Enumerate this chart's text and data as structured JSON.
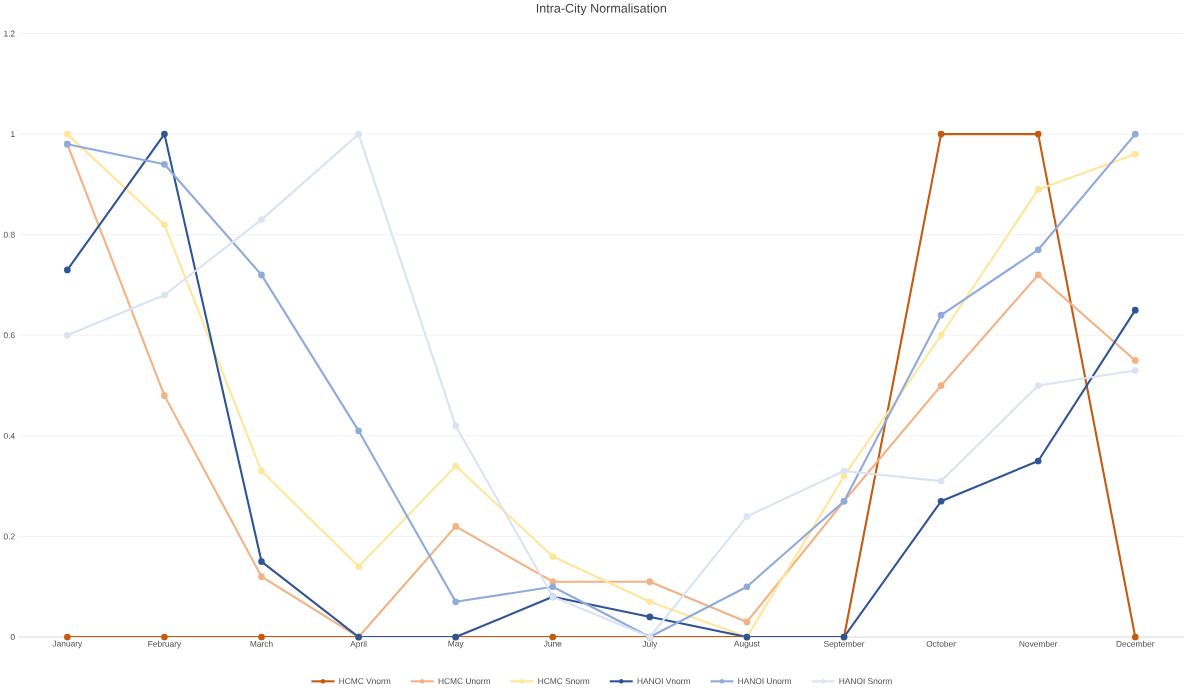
{
  "chart_data": {
    "type": "line",
    "title": "Intra-City Normalisation",
    "categories": [
      "January",
      "February",
      "March",
      "April",
      "May",
      "June",
      "July",
      "August",
      "September",
      "October",
      "November",
      "December"
    ],
    "series": [
      {
        "name": "HCMC Vnorm",
        "color": "#c55a11",
        "values": [
          0,
          0,
          0,
          0,
          0,
          0,
          0,
          0,
          0,
          1,
          1,
          0
        ]
      },
      {
        "name": "HCMC Unorm",
        "color": "#f4b183",
        "values": [
          0.98,
          0.48,
          0.12,
          0,
          0.22,
          0.11,
          0.11,
          0.03,
          0.27,
          0.5,
          0.72,
          0.55
        ]
      },
      {
        "name": "HCMC Snorm",
        "color": "#ffe699",
        "values": [
          1,
          0.82,
          0.33,
          0.14,
          0.34,
          0.16,
          0.07,
          0,
          0.32,
          0.6,
          0.89,
          0.96
        ]
      },
      {
        "name": "HANOI Vnorm",
        "color": "#2f5597",
        "values": [
          0.73,
          1,
          0.15,
          0,
          0,
          0.08,
          0.04,
          0,
          0,
          0.27,
          0.35,
          0.65
        ]
      },
      {
        "name": "HANOI Unorm",
        "color": "#8faadc",
        "values": [
          0.98,
          0.94,
          0.72,
          0.41,
          0.07,
          0.1,
          0,
          0.1,
          0.27,
          0.64,
          0.77,
          1
        ]
      },
      {
        "name": "HANOI Snorm",
        "color": "#dae3f3",
        "values": [
          0.6,
          0.68,
          0.83,
          1,
          0.42,
          0.08,
          0,
          0.24,
          0.33,
          0.31,
          0.5,
          0.53
        ]
      }
    ],
    "ylim": [
      0,
      1.2
    ],
    "yticks": [
      0,
      0.2,
      0.4,
      0.6,
      0.8,
      1,
      1.2
    ],
    "grid": "y",
    "legend": "bottom",
    "marker": "circle",
    "line_style": "solid"
  }
}
